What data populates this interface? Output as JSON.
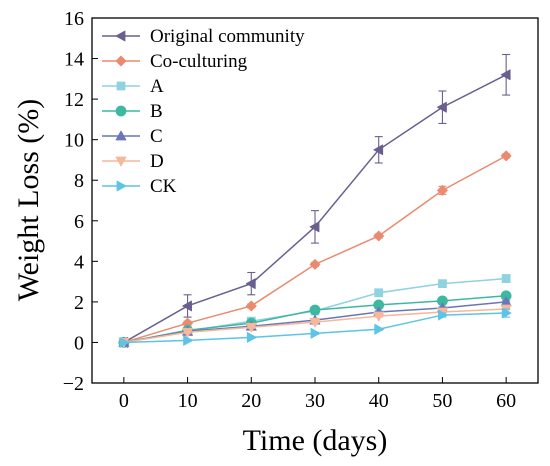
{
  "chart_data": {
    "type": "line",
    "xlabel": "Time (days)",
    "ylabel": "Weight Loss (%)",
    "xlim": [
      -5,
      65
    ],
    "ylim": [
      -2,
      16
    ],
    "xticks": [
      0,
      10,
      20,
      30,
      40,
      50,
      60
    ],
    "yticks": [
      -2,
      0,
      2,
      4,
      6,
      8,
      10,
      12,
      14,
      16
    ],
    "ytick_labels": [
      "−2",
      "0",
      "2",
      "4",
      "6",
      "8",
      "10",
      "12",
      "14",
      "16"
    ],
    "grid": false,
    "legend_position": "top-left",
    "x": [
      0,
      10,
      20,
      30,
      40,
      50,
      60
    ],
    "series": [
      {
        "name": "Original community",
        "color": "#6a5f8e",
        "marker": "triangle-left",
        "values": [
          0,
          1.8,
          2.9,
          5.7,
          9.5,
          11.6,
          13.2
        ],
        "errors": [
          0,
          0.55,
          0.55,
          0.8,
          0.65,
          0.8,
          1.0
        ]
      },
      {
        "name": "Co-culturing",
        "color": "#ea8a6f",
        "marker": "diamond",
        "values": [
          0,
          0.95,
          1.8,
          3.85,
          5.25,
          7.5,
          9.2
        ],
        "errors": [
          0,
          0.1,
          0.1,
          0.1,
          0.1,
          0.2,
          0.1
        ]
      },
      {
        "name": "A",
        "color": "#8fd3e0",
        "marker": "square",
        "values": [
          0,
          0.55,
          1.05,
          1.55,
          2.45,
          2.9,
          3.15
        ],
        "errors": [
          0,
          0.05,
          0.05,
          0.05,
          0.05,
          0.05,
          0.05
        ]
      },
      {
        "name": "B",
        "color": "#3eb8a0",
        "marker": "circle",
        "values": [
          0,
          0.6,
          0.95,
          1.6,
          1.85,
          2.05,
          2.3
        ],
        "errors": [
          0,
          0.05,
          0.05,
          0.05,
          0.05,
          0.05,
          0.05
        ]
      },
      {
        "name": "C",
        "color": "#6a76b8",
        "marker": "triangle-up",
        "values": [
          0,
          0.55,
          0.8,
          1.1,
          1.5,
          1.7,
          2.0
        ],
        "errors": [
          0,
          0.05,
          0.05,
          0.05,
          0.05,
          0.05,
          0.05
        ]
      },
      {
        "name": "D",
        "color": "#f7b79a",
        "marker": "triangle-down",
        "values": [
          0,
          0.5,
          0.75,
          1.0,
          1.3,
          1.5,
          1.65
        ],
        "errors": [
          0,
          0.05,
          0.05,
          0.05,
          0.05,
          0.05,
          0.05
        ]
      },
      {
        "name": "CK",
        "color": "#5ec4e6",
        "marker": "triangle-right",
        "values": [
          0,
          0.1,
          0.25,
          0.45,
          0.65,
          1.35,
          1.45
        ],
        "errors": [
          0,
          0.05,
          0.05,
          0.05,
          0.05,
          0.1,
          0.2
        ]
      }
    ]
  }
}
